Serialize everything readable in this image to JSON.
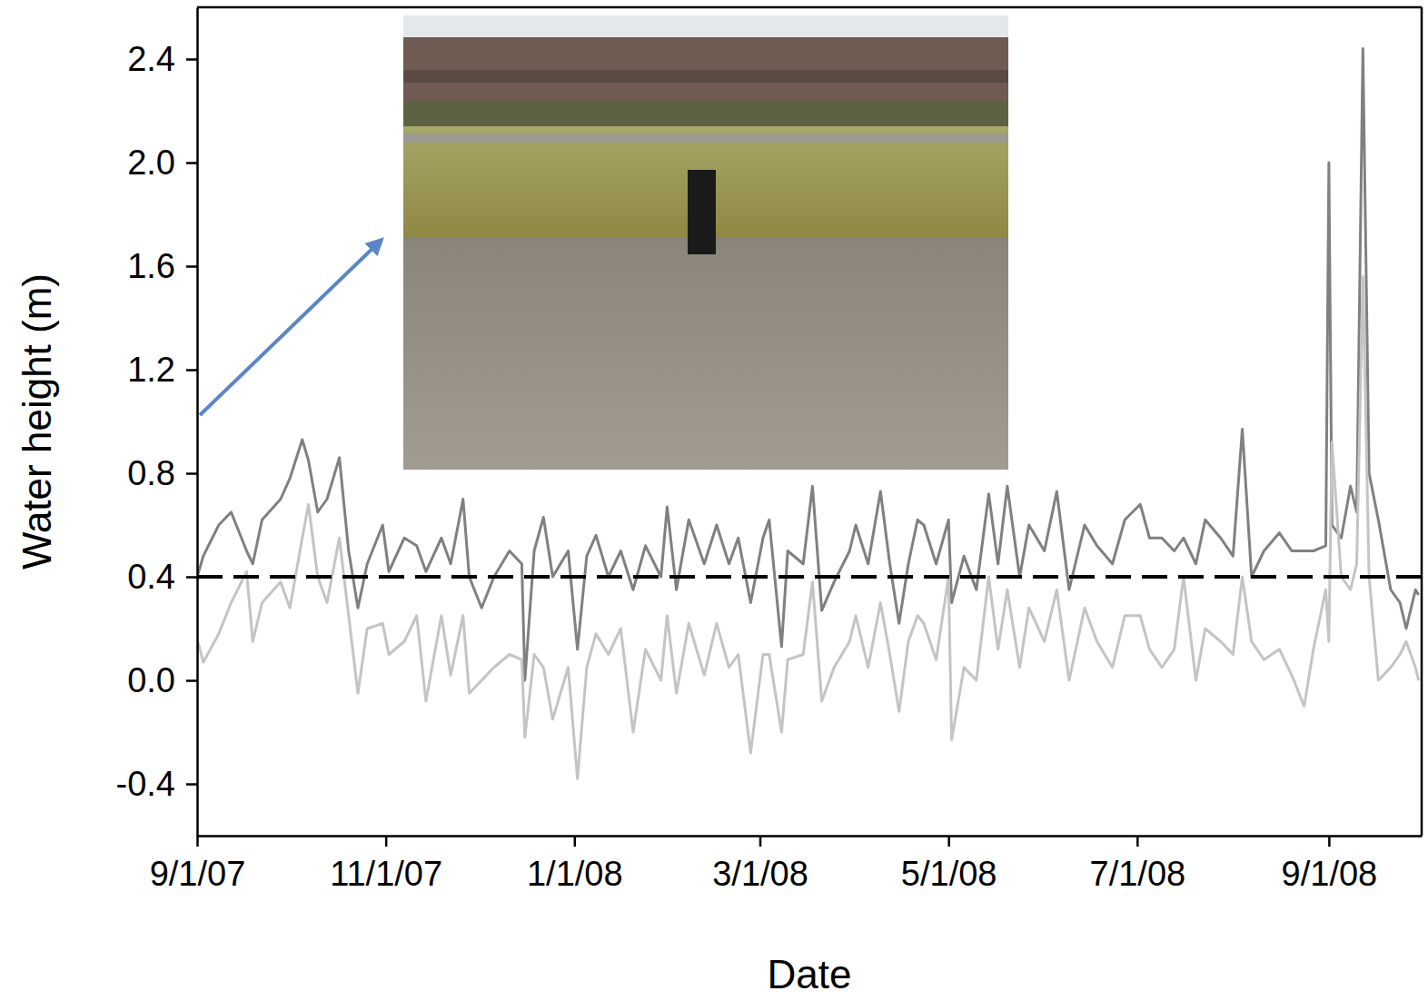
{
  "chart_data": {
    "type": "line",
    "x_label": "Date",
    "y_label": "Water height (m)",
    "x": [
      "2007-09-01",
      "2007-09-03",
      "2007-09-08",
      "2007-09-12",
      "2007-09-17",
      "2007-09-19",
      "2007-09-22",
      "2007-09-28",
      "2007-10-01",
      "2007-10-05",
      "2007-10-07",
      "2007-10-10",
      "2007-10-13",
      "2007-10-17",
      "2007-10-20",
      "2007-10-23",
      "2007-10-26",
      "2007-10-31",
      "2007-11-02",
      "2007-11-07",
      "2007-11-11",
      "2007-11-14",
      "2007-11-19",
      "2007-11-22",
      "2007-11-26",
      "2007-11-28",
      "2007-12-02",
      "2007-12-06",
      "2007-12-11",
      "2007-12-15",
      "2007-12-16",
      "2007-12-19",
      "2007-12-22",
      "2007-12-25",
      "2007-12-30",
      "2008-01-02",
      "2008-01-05",
      "2008-01-08",
      "2008-01-12",
      "2008-01-16",
      "2008-01-20",
      "2008-01-24",
      "2008-01-29",
      "2008-01-31",
      "2008-02-03",
      "2008-02-07",
      "2008-02-12",
      "2008-02-16",
      "2008-02-20",
      "2008-02-23",
      "2008-02-27",
      "2008-03-02",
      "2008-03-04",
      "2008-03-08",
      "2008-03-10",
      "2008-03-15",
      "2008-03-18",
      "2008-03-21",
      "2008-03-25",
      "2008-03-30",
      "2008-04-01",
      "2008-04-05",
      "2008-04-09",
      "2008-04-12",
      "2008-04-15",
      "2008-04-18",
      "2008-04-21",
      "2008-04-23",
      "2008-04-27",
      "2008-05-01",
      "2008-05-02",
      "2008-05-06",
      "2008-05-10",
      "2008-05-14",
      "2008-05-17",
      "2008-05-20",
      "2008-05-24",
      "2008-05-27",
      "2008-06-01",
      "2008-06-05",
      "2008-06-09",
      "2008-06-14",
      "2008-06-18",
      "2008-06-23",
      "2008-06-27",
      "2008-07-02",
      "2008-07-05",
      "2008-07-09",
      "2008-07-13",
      "2008-07-16",
      "2008-07-20",
      "2008-07-23",
      "2008-07-28",
      "2008-08-01",
      "2008-08-04",
      "2008-08-07",
      "2008-08-11",
      "2008-08-16",
      "2008-08-20",
      "2008-08-24",
      "2008-08-27",
      "2008-08-31",
      "2008-09-01",
      "2008-09-02",
      "2008-09-05",
      "2008-09-08",
      "2008-09-10",
      "2008-09-12",
      "2008-09-14",
      "2008-09-17",
      "2008-09-21",
      "2008-09-24",
      "2008-09-26",
      "2008-09-29",
      "2008-09-30"
    ],
    "series": [
      {
        "color": "#808080",
        "line_style": "solid",
        "values": [
          0.4,
          0.48,
          0.6,
          0.65,
          0.5,
          0.45,
          0.62,
          0.7,
          0.78,
          0.93,
          0.85,
          0.65,
          0.7,
          0.86,
          0.5,
          0.28,
          0.45,
          0.6,
          0.42,
          0.55,
          0.52,
          0.42,
          0.55,
          0.45,
          0.7,
          0.4,
          0.28,
          0.4,
          0.5,
          0.45,
          0.0,
          0.5,
          0.63,
          0.4,
          0.5,
          0.12,
          0.48,
          0.56,
          0.4,
          0.5,
          0.35,
          0.52,
          0.4,
          0.67,
          0.35,
          0.62,
          0.45,
          0.6,
          0.45,
          0.55,
          0.3,
          0.55,
          0.62,
          0.13,
          0.5,
          0.45,
          0.75,
          0.27,
          0.38,
          0.5,
          0.6,
          0.45,
          0.73,
          0.45,
          0.22,
          0.45,
          0.62,
          0.6,
          0.45,
          0.62,
          0.3,
          0.48,
          0.35,
          0.72,
          0.45,
          0.75,
          0.4,
          0.6,
          0.5,
          0.73,
          0.35,
          0.6,
          0.52,
          0.45,
          0.62,
          0.68,
          0.55,
          0.55,
          0.5,
          0.55,
          0.45,
          0.62,
          0.55,
          0.48,
          0.97,
          0.4,
          0.5,
          0.57,
          0.5,
          0.5,
          0.5,
          0.52,
          2.0,
          0.6,
          0.55,
          0.75,
          0.65,
          2.44,
          0.8,
          0.62,
          0.35,
          0.3,
          0.2,
          0.35,
          0.33
        ]
      },
      {
        "color": "#c4c4c4",
        "line_style": "solid",
        "values": [
          0.16,
          0.07,
          0.18,
          0.3,
          0.42,
          0.15,
          0.3,
          0.38,
          0.28,
          0.55,
          0.68,
          0.4,
          0.3,
          0.55,
          0.25,
          -0.05,
          0.2,
          0.22,
          0.1,
          0.15,
          0.25,
          -0.08,
          0.25,
          0.02,
          0.25,
          -0.05,
          0.0,
          0.05,
          0.1,
          0.08,
          -0.22,
          0.1,
          0.05,
          -0.15,
          0.05,
          -0.38,
          0.05,
          0.18,
          0.1,
          0.2,
          -0.2,
          0.12,
          0.0,
          0.25,
          -0.05,
          0.22,
          0.02,
          0.22,
          0.05,
          0.1,
          -0.28,
          0.1,
          0.1,
          -0.2,
          0.08,
          0.1,
          0.38,
          -0.08,
          0.05,
          0.15,
          0.25,
          0.05,
          0.3,
          0.1,
          -0.12,
          0.15,
          0.25,
          0.22,
          0.08,
          0.4,
          -0.23,
          0.05,
          0.0,
          0.4,
          0.12,
          0.35,
          0.05,
          0.28,
          0.15,
          0.35,
          0.0,
          0.28,
          0.15,
          0.05,
          0.25,
          0.25,
          0.12,
          0.05,
          0.12,
          0.4,
          0.0,
          0.2,
          0.15,
          0.1,
          0.4,
          0.15,
          0.08,
          0.12,
          0.02,
          -0.1,
          0.12,
          0.35,
          0.15,
          0.92,
          0.4,
          0.35,
          0.45,
          1.56,
          0.4,
          0.0,
          0.05,
          0.1,
          0.15,
          0.05,
          0.0
        ]
      }
    ],
    "hline": {
      "value": 0.4,
      "color": "#000000",
      "line_style": "dashed"
    },
    "xlim": [
      "2007-09-01",
      "2008-10-01"
    ],
    "xticks": [
      {
        "value": "2007-09-01",
        "label": "9/1/07"
      },
      {
        "value": "2007-11-01",
        "label": "11/1/07"
      },
      {
        "value": "2008-01-01",
        "label": "1/1/08"
      },
      {
        "value": "2008-03-01",
        "label": "3/1/08"
      },
      {
        "value": "2008-05-01",
        "label": "5/1/08"
      },
      {
        "value": "2008-07-01",
        "label": "7/1/08"
      },
      {
        "value": "2008-09-01",
        "label": "9/1/08"
      }
    ],
    "ylim": [
      -0.6,
      2.6
    ],
    "yticks": [
      -0.4,
      {
        "value": 0,
        "label": "0.0"
      },
      0.4,
      0.8,
      1.2,
      1.6,
      {
        "value": 2,
        "label": "2.0"
      },
      2.4
    ],
    "grid": false
  }
}
